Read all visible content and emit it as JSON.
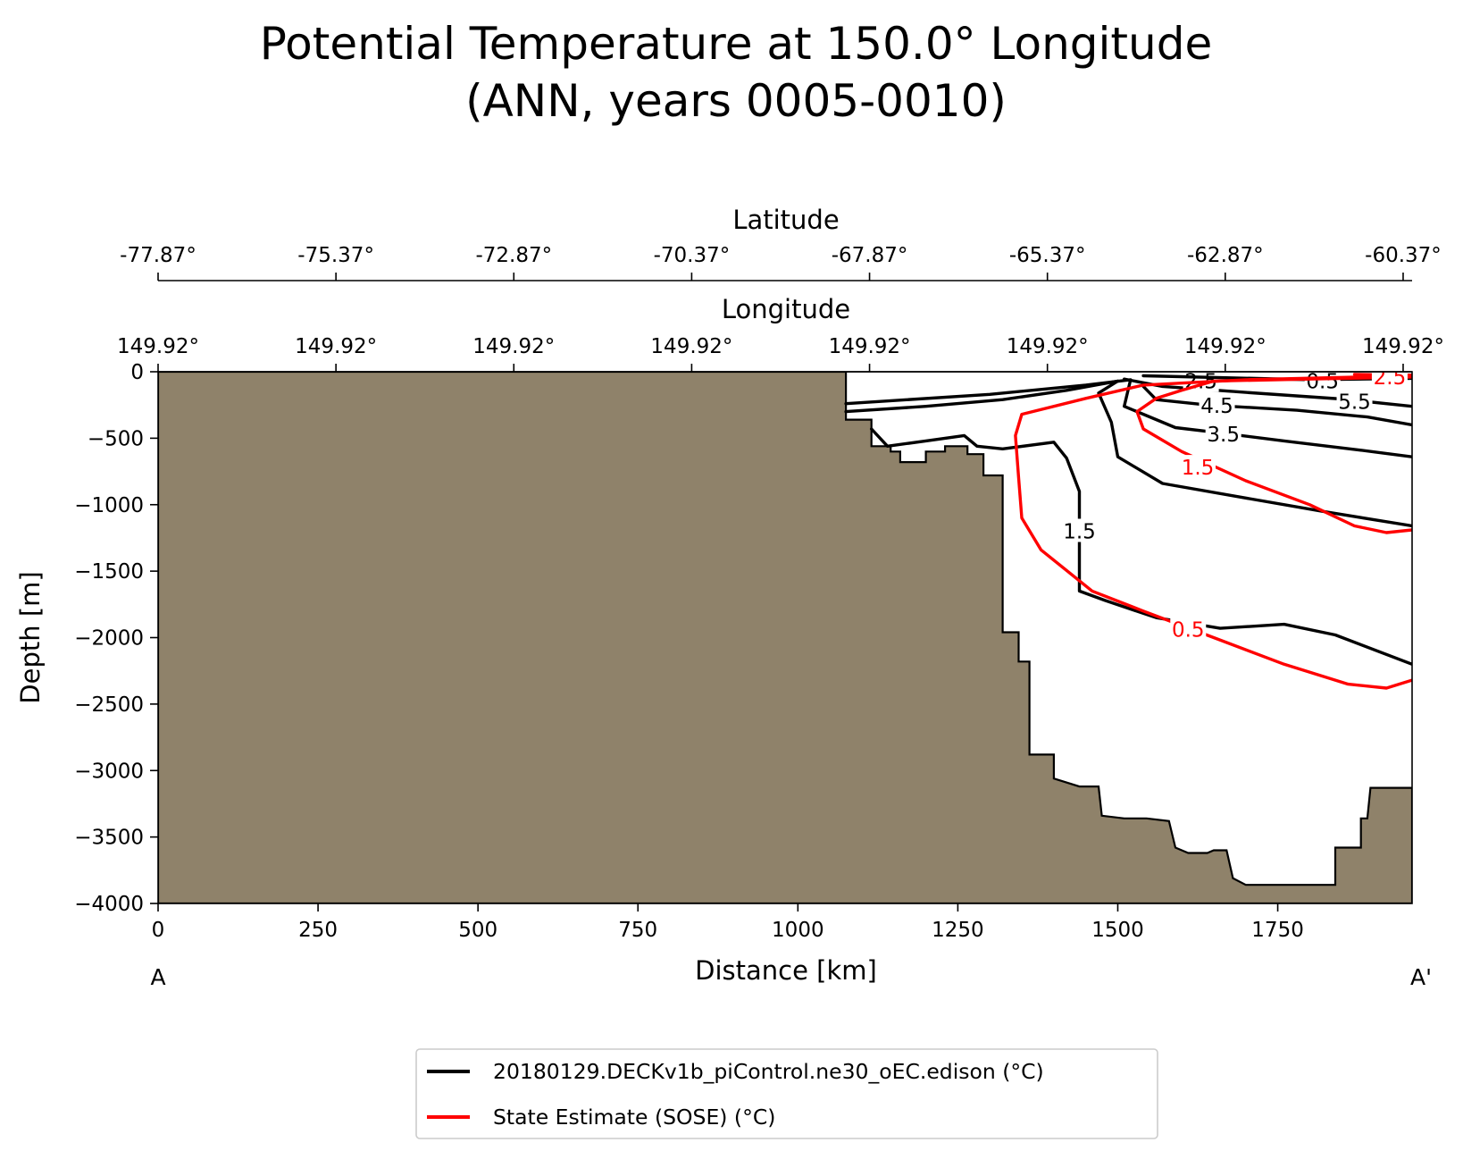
{
  "chart_data": {
    "type": "contour",
    "title": [
      "Potential Temperature at 150.0° Longitude",
      "(ANN, years 0005-0010)"
    ],
    "xlabel": "Distance [km]",
    "ylabel": "Depth [m]",
    "xlim": [
      0,
      1960
    ],
    "ylim": [
      -4000,
      0
    ],
    "x_ticks": [
      0,
      250,
      500,
      750,
      1000,
      1250,
      1500,
      1750
    ],
    "y_ticks": [
      0,
      -500,
      -1000,
      -1500,
      -2000,
      -2500,
      -3000,
      -3500,
      -4000
    ],
    "x_tick_labels": [
      "0",
      "250",
      "500",
      "750",
      "1000",
      "1250",
      "1500",
      "1750"
    ],
    "y_tick_labels": [
      "0",
      "−500",
      "−1000",
      "−1500",
      "−2000",
      "−2500",
      "−3000",
      "−3500",
      "−4000"
    ],
    "latitude_axis": {
      "label": "Latitude",
      "tick_distance_km": [
        0,
        278,
        556,
        834,
        1112,
        1390,
        1668,
        1946
      ],
      "tick_labels": [
        "-77.87°",
        "-75.37°",
        "-72.87°",
        "-70.37°",
        "-67.87°",
        "-65.37°",
        "-62.87°",
        "-60.37°"
      ]
    },
    "longitude_axis": {
      "label": "Longitude",
      "tick_distance_km": [
        0,
        278,
        556,
        834,
        1112,
        1390,
        1668,
        1946
      ],
      "tick_labels": [
        "149.92°",
        "149.92°",
        "149.92°",
        "149.92°",
        "149.92°",
        "149.92°",
        "149.92°",
        "149.92°"
      ]
    },
    "section_endpoints": {
      "start": "A",
      "end": "A'"
    },
    "land_color": "#8f826a",
    "land_bottom_profile": [
      [
        0,
        0
      ],
      [
        1075,
        0
      ],
      [
        1075,
        -360
      ],
      [
        1115,
        -360
      ],
      [
        1115,
        -560
      ],
      [
        1145,
        -560
      ],
      [
        1145,
        -600
      ],
      [
        1160,
        -600
      ],
      [
        1160,
        -680
      ],
      [
        1200,
        -680
      ],
      [
        1200,
        -600
      ],
      [
        1230,
        -600
      ],
      [
        1230,
        -560
      ],
      [
        1265,
        -560
      ],
      [
        1265,
        -620
      ],
      [
        1290,
        -620
      ],
      [
        1290,
        -780
      ],
      [
        1320,
        -780
      ],
      [
        1320,
        -1960
      ],
      [
        1345,
        -1960
      ],
      [
        1345,
        -2180
      ],
      [
        1362,
        -2180
      ],
      [
        1362,
        -2880
      ],
      [
        1400,
        -2880
      ],
      [
        1400,
        -3060
      ],
      [
        1440,
        -3120
      ],
      [
        1470,
        -3120
      ],
      [
        1475,
        -3340
      ],
      [
        1510,
        -3360
      ],
      [
        1545,
        -3360
      ],
      [
        1580,
        -3380
      ],
      [
        1590,
        -3580
      ],
      [
        1610,
        -3620
      ],
      [
        1640,
        -3620
      ],
      [
        1650,
        -3600
      ],
      [
        1670,
        -3600
      ],
      [
        1680,
        -3810
      ],
      [
        1700,
        -3860
      ],
      [
        1840,
        -3860
      ],
      [
        1840,
        -3580
      ],
      [
        1880,
        -3580
      ],
      [
        1880,
        -3360
      ],
      [
        1890,
        -3360
      ],
      [
        1895,
        -3130
      ],
      [
        1960,
        -3130
      ],
      [
        1960,
        -4000
      ],
      [
        0,
        -4000
      ]
    ],
    "series": [
      {
        "name": "20180129.DECKv1b_piControl.ne30_oEC.edison (°C)",
        "color": "#000000",
        "contours": [
          {
            "level": 5.5,
            "label": "5.5",
            "label_at": [
              1870,
              -225
            ],
            "points": [
              [
                1510,
                -55
              ],
              [
                1570,
                -110
              ],
              [
                1700,
                -155
              ],
              [
                1850,
                -205
              ],
              [
                1960,
                -260
              ]
            ]
          },
          {
            "level": 4.5,
            "label": "4.5",
            "label_at": [
              1655,
              -255
            ],
            "points": [
              [
                1540,
                -110
              ],
              [
                1560,
                -210
              ],
              [
                1640,
                -250
              ],
              [
                1780,
                -290
              ],
              [
                1890,
                -340
              ],
              [
                1960,
                -400
              ]
            ]
          },
          {
            "level": 3.5,
            "label": "3.5",
            "label_at": [
              1665,
              -470
            ],
            "points": [
              [
                1075,
                -240
              ],
              [
                1300,
                -170
              ],
              [
                1450,
                -100
              ],
              [
                1520,
                -60
              ],
              [
                1510,
                -260
              ],
              [
                1590,
                -420
              ],
              [
                1660,
                -460
              ],
              [
                1760,
                -520
              ],
              [
                1880,
                -590
              ],
              [
                1960,
                -640
              ]
            ]
          },
          {
            "level": 2.5,
            "label": "2.5",
            "label_at": [
              1630,
              -70
            ],
            "points": [
              [
                1075,
                -300
              ],
              [
                1200,
                -260
              ],
              [
                1320,
                -210
              ],
              [
                1420,
                -140
              ],
              [
                1500,
                -70
              ],
              [
                1470,
                -160
              ],
              [
                1490,
                -380
              ],
              [
                1500,
                -640
              ],
              [
                1570,
                -840
              ],
              [
                1700,
                -950
              ],
              [
                1820,
                -1050
              ],
              [
                1960,
                -1160
              ]
            ]
          },
          {
            "level": 1.5,
            "label": "1.5",
            "label_at": [
              1440,
              -1200
            ],
            "points": [
              [
                1115,
                -430
              ],
              [
                1140,
                -560
              ],
              [
                1200,
                -520
              ],
              [
                1260,
                -480
              ],
              [
                1280,
                -560
              ],
              [
                1320,
                -580
              ],
              [
                1400,
                -530
              ],
              [
                1420,
                -650
              ],
              [
                1440,
                -900
              ],
              [
                1440,
                -1650
              ],
              [
                1480,
                -1720
              ],
              [
                1560,
                -1850
              ],
              [
                1660,
                -1930
              ],
              [
                1760,
                -1900
              ],
              [
                1840,
                -1980
              ],
              [
                1960,
                -2200
              ]
            ]
          },
          {
            "level": 0.5,
            "label": "0.5",
            "label_at": [
              1820,
              -70
            ],
            "points": [
              [
                1540,
                -30
              ],
              [
                1800,
                -60
              ],
              [
                1960,
                -50
              ]
            ]
          }
        ]
      },
      {
        "name": "State Estimate (SOSE) (°C)",
        "color": "#ff0000",
        "contours": [
          {
            "level": 1.5,
            "label": "1.5",
            "label_at": [
              1625,
              -720
            ],
            "points": [
              [
                1960,
                -40
              ],
              [
                1800,
                -55
              ],
              [
                1650,
                -70
              ],
              [
                1600,
                -140
              ],
              [
                1560,
                -200
              ],
              [
                1530,
                -300
              ],
              [
                1540,
                -430
              ],
              [
                1600,
                -600
              ],
              [
                1700,
                -820
              ],
              [
                1800,
                -1000
              ],
              [
                1870,
                -1160
              ],
              [
                1920,
                -1210
              ],
              [
                1960,
                -1190
              ]
            ]
          },
          {
            "level": 0.5,
            "label": "0.5",
            "label_at": [
              1610,
              -1940
            ],
            "points": [
              [
                1960,
                -30
              ],
              [
                1700,
                -60
              ],
              [
                1540,
                -100
              ],
              [
                1450,
                -200
              ],
              [
                1350,
                -320
              ],
              [
                1340,
                -480
              ],
              [
                1345,
                -800
              ],
              [
                1350,
                -1100
              ],
              [
                1380,
                -1340
              ],
              [
                1460,
                -1650
              ],
              [
                1540,
                -1800
              ],
              [
                1650,
                -2000
              ],
              [
                1760,
                -2200
              ],
              [
                1860,
                -2350
              ],
              [
                1920,
                -2380
              ],
              [
                1960,
                -2320
              ]
            ]
          },
          {
            "level": 2.5,
            "label": "2.5",
            "label_at": [
              1925,
              -40
            ],
            "points": [
              [
                1870,
                -20
              ],
              [
                1960,
                -25
              ]
            ]
          }
        ]
      }
    ]
  }
}
